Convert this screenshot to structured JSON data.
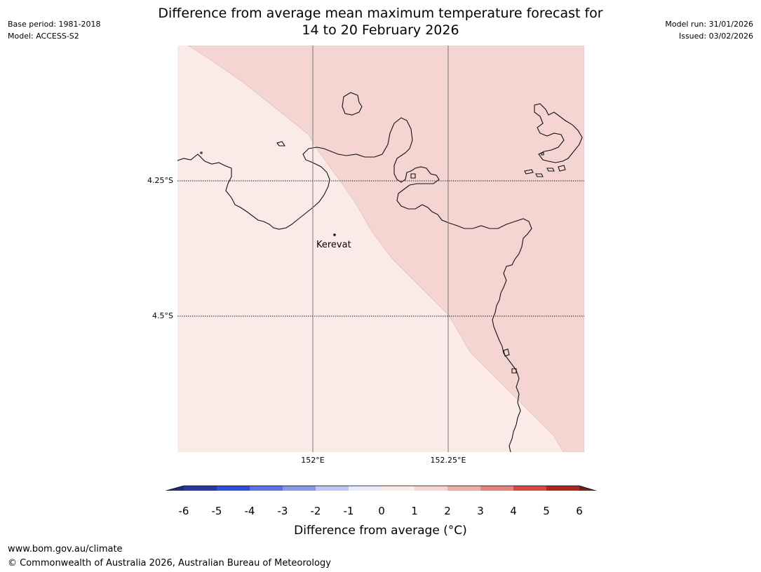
{
  "header": {
    "title_line1": "Difference from average mean maximum temperature forecast for",
    "title_line2": "14 to 20 February 2026",
    "base_period": "Base period: 1981-2018",
    "model": "Model: ACCESS-S2",
    "model_run": "Model run: 31/01/2026",
    "issued": "Issued: 03/02/2026"
  },
  "map": {
    "lat_labels": [
      "4.25°S",
      "4.5°S"
    ],
    "lon_labels": [
      "152°E",
      "152.25°E"
    ],
    "place_name": "Kerevat",
    "region_colors": {
      "band_0_1": "#fbebe8",
      "band_1_2": "#f5d5d2"
    }
  },
  "colorbar": {
    "label": "Difference from average (°C)",
    "ticks": [
      "-6",
      "-5",
      "-4",
      "-3",
      "-2",
      "-1",
      "0",
      "1",
      "2",
      "3",
      "4",
      "5",
      "6"
    ],
    "colors": [
      "#27399f",
      "#2f4ddb",
      "#5c72e5",
      "#8897ec",
      "#c0c7f5",
      "#e8ebfb",
      "#fbebe8",
      "#f5d5d2",
      "#eeaea8",
      "#e6827b",
      "#d64a3e",
      "#ac271f"
    ],
    "under_color": "#1f2d7c",
    "over_color": "#7a1e1a"
  },
  "footer": {
    "url": "www.bom.gov.au/climate",
    "copyright": "© Commonwealth of Australia 2026, Australian Bureau of Meteorology"
  }
}
